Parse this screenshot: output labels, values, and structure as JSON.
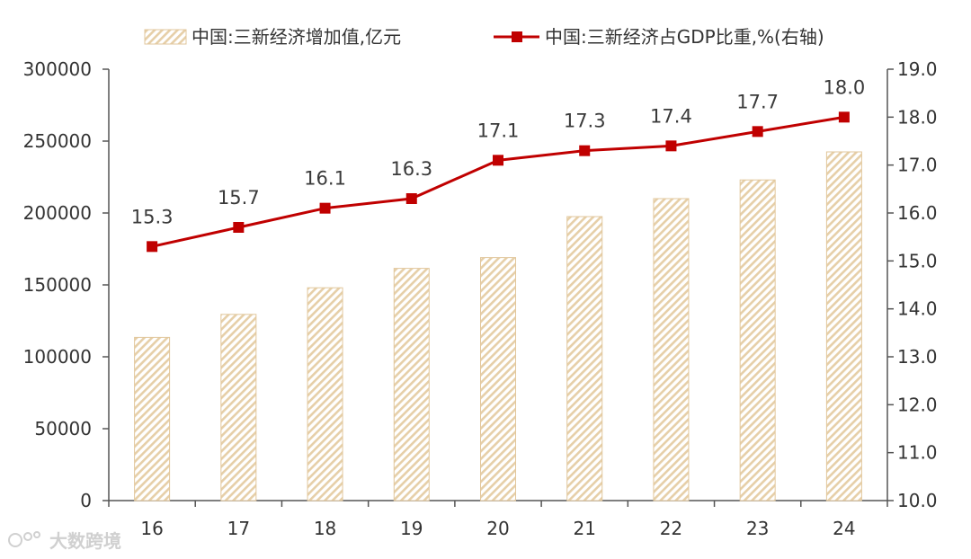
{
  "chart_data": {
    "type": "bar+line",
    "categories": [
      "16",
      "17",
      "18",
      "19",
      "20",
      "21",
      "22",
      "23",
      "24"
    ],
    "series": [
      {
        "name": "中国:三新经济增加值,亿元",
        "type": "bar",
        "axis": "left",
        "values": [
          113500,
          129500,
          148000,
          161500,
          169000,
          197500,
          210000,
          223000,
          242500
        ]
      },
      {
        "name": "中国:三新经济占GDP比重,%(右轴)",
        "type": "line",
        "axis": "right",
        "values": [
          15.3,
          15.7,
          16.1,
          16.3,
          17.1,
          17.3,
          17.4,
          17.7,
          18.0
        ],
        "labels": [
          "15.3",
          "15.7",
          "16.1",
          "16.3",
          "17.1",
          "17.3",
          "17.4",
          "17.7",
          "18.0"
        ]
      }
    ],
    "left_axis": {
      "ylim": [
        0,
        300000
      ],
      "ticks": [
        "0",
        "50000",
        "100000",
        "150000",
        "200000",
        "250000",
        "300000"
      ]
    },
    "right_axis": {
      "ylim": [
        10.0,
        19.0
      ],
      "ticks": [
        "10.0",
        "11.0",
        "12.0",
        "13.0",
        "14.0",
        "15.0",
        "16.0",
        "17.0",
        "18.0",
        "19.0"
      ]
    },
    "title": "",
    "xlabel": "",
    "ylabel": "",
    "grid": false,
    "legend": "top-center"
  },
  "colors": {
    "bar_stripe": "#e6cfa8",
    "bar_border": "#e2c79c",
    "line": "#c00000",
    "axis": "#555555",
    "text": "#333333"
  },
  "watermark": {
    "text": "大数跨境"
  }
}
